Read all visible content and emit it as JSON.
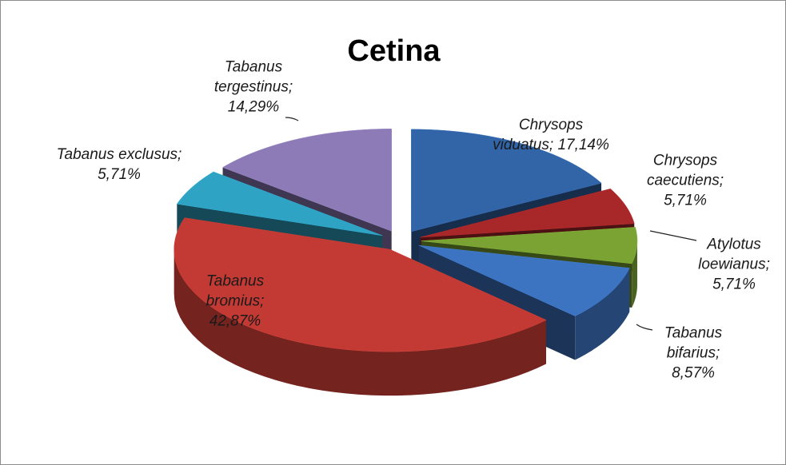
{
  "chart_data": {
    "type": "pie",
    "title": "Cetina",
    "categories": [
      "Chrysops viduatus;",
      "Chrysops caecutiens;",
      "Atylotus loewianus;",
      "Tabanus bifarius;",
      "Tabanus bromius;",
      "Tabanus exclusus;",
      "Tabanus tergestinus;"
    ],
    "values": [
      17.14,
      5.71,
      5.71,
      8.57,
      42.87,
      5.71,
      14.29
    ],
    "value_labels": [
      "17,14%",
      "5,71%",
      "5,71%",
      "8,57%",
      "42,87%",
      "5,71%",
      "14,29%"
    ],
    "colors": [
      "#3264a8",
      "#a8282a",
      "#7aa334",
      "#3d74c2",
      "#c23a33",
      "#2ea3c4",
      "#8d7bb7"
    ]
  }
}
